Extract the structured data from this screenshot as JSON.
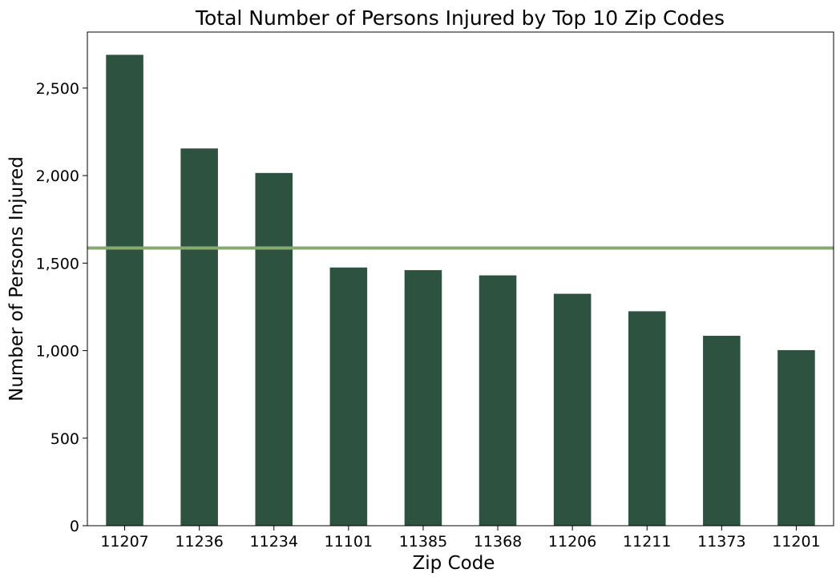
{
  "chart_data": {
    "type": "bar",
    "title": "Total Number of Persons Injured by Top 10 Zip Codes",
    "xlabel": "Zip Code",
    "ylabel": "Number of Persons Injured",
    "categories": [
      "11207",
      "11236",
      "11234",
      "11101",
      "11385",
      "11368",
      "11206",
      "11211",
      "11373",
      "11201"
    ],
    "values": [
      2690,
      2155,
      2015,
      1475,
      1460,
      1430,
      1325,
      1225,
      1085,
      1003
    ],
    "ylim": [
      0,
      2820
    ],
    "yticks": [
      0,
      500,
      1000,
      1500,
      2000,
      2500
    ],
    "ytick_labels": [
      "0",
      "500",
      "1,000",
      "1,500",
      "2,000",
      "2,500"
    ],
    "reference_line": {
      "value": 1586,
      "color": "#86A873"
    },
    "bar_color": "#2D5240",
    "grid": false,
    "legend": "none"
  }
}
